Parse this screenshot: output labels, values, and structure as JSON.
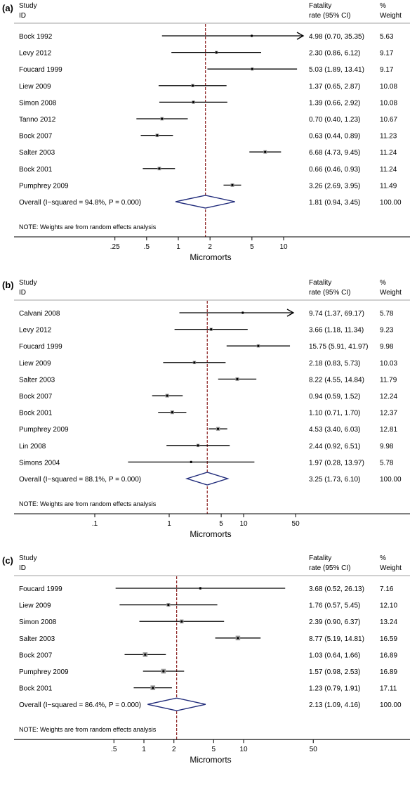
{
  "panels": [
    {
      "tag": "(a)",
      "header": {
        "study_1": "Study",
        "study_2": "ID",
        "rate_1": "Fatality",
        "rate_2": "rate (95% CI)",
        "weight_1": "%",
        "weight_2": "Weight"
      },
      "note": "NOTE: Weights are from random effects analysis",
      "xlabel": "Micromorts",
      "rows": [
        {
          "study": "Bock 1992",
          "ci_text": "4.98 (0.70, 35.35)",
          "weight": "5.63"
        },
        {
          "study": "Levy 2012",
          "ci_text": "2.30 (0.86, 6.12)",
          "weight": "9.17"
        },
        {
          "study": "Foucard 1999",
          "ci_text": "5.03 (1.89, 13.41)",
          "weight": "9.17"
        },
        {
          "study": "Liew 2009",
          "ci_text": "1.37 (0.65, 2.87)",
          "weight": "10.08"
        },
        {
          "study": "Simon 2008",
          "ci_text": "1.39 (0.66, 2.92)",
          "weight": "10.08"
        },
        {
          "study": "Tanno 2012",
          "ci_text": "0.70 (0.40, 1.23)",
          "weight": "10.67"
        },
        {
          "study": "Bock 2007",
          "ci_text": "0.63 (0.44, 0.89)",
          "weight": "11.23"
        },
        {
          "study": "Salter 2003",
          "ci_text": "6.68 (4.73, 9.45)",
          "weight": "11.24"
        },
        {
          "study": "Bock 2001",
          "ci_text": "0.66 (0.46, 0.93)",
          "weight": "11.24"
        },
        {
          "study": "Pumphrey 2009",
          "ci_text": "3.26 (2.69, 3.95)",
          "weight": "11.49"
        }
      ],
      "overall": {
        "label": "Overall (I−squared = 94.8%, P = 0.000)",
        "ci_text": "1.81 (0.94, 3.45)",
        "weight": "100.00"
      }
    },
    {
      "tag": "(b)",
      "header": {
        "study_1": "Study",
        "study_2": "ID",
        "rate_1": "Fatality",
        "rate_2": "rate (95% CI)",
        "weight_1": "%",
        "weight_2": "Weight"
      },
      "note": "NOTE: Weights are from random effects analysis",
      "xlabel": "Micromorts",
      "rows": [
        {
          "study": "Calvani 2008",
          "ci_text": "9.74 (1.37, 69.17)",
          "weight": "5.78"
        },
        {
          "study": "Levy 2012",
          "ci_text": "3.66 (1.18, 11.34)",
          "weight": "9.23"
        },
        {
          "study": "Foucard 1999",
          "ci_text": "15.75 (5.91, 41.97)",
          "weight": "9.98"
        },
        {
          "study": "Liew 2009",
          "ci_text": "2.18 (0.83, 5.73)",
          "weight": "10.03"
        },
        {
          "study": "Salter 2003",
          "ci_text": "8.22 (4.55, 14.84)",
          "weight": "11.79"
        },
        {
          "study": "Bock 2007",
          "ci_text": "0.94 (0.59, 1.52)",
          "weight": "12.24"
        },
        {
          "study": "Bock 2001",
          "ci_text": "1.10 (0.71, 1.70)",
          "weight": "12.37"
        },
        {
          "study": "Pumphrey 2009",
          "ci_text": "4.53 (3.40, 6.03)",
          "weight": "12.81"
        },
        {
          "study": "Lin 2008",
          "ci_text": "2.44 (0.92, 6.51)",
          "weight": "9.98"
        },
        {
          "study": "Simons 2004",
          "ci_text": "1.97 (0.28, 13.97)",
          "weight": "5.78"
        }
      ],
      "overall": {
        "label": "Overall (I−squared = 88.1%, P = 0.000)",
        "ci_text": "3.25 (1.73, 6.10)",
        "weight": "100.00"
      }
    },
    {
      "tag": "(c)",
      "header": {
        "study_1": "Study",
        "study_2": "ID",
        "rate_1": "Fatality",
        "rate_2": "rate (95% CI)",
        "weight_1": "%",
        "weight_2": "Weight"
      },
      "note": "NOTE: Weights are from random effects analysis",
      "xlabel": "Micromorts",
      "rows": [
        {
          "study": "Foucard 1999",
          "ci_text": "3.68 (0.52, 26.13)",
          "weight": "7.16"
        },
        {
          "study": "Liew 2009",
          "ci_text": "1.76 (0.57, 5.45)",
          "weight": "12.10"
        },
        {
          "study": "Simon 2008",
          "ci_text": "2.39 (0.90, 6.37)",
          "weight": "13.24"
        },
        {
          "study": "Salter 2003",
          "ci_text": "8.77 (5.19, 14.81)",
          "weight": "16.59"
        },
        {
          "study": "Bock 2007",
          "ci_text": "1.03 (0.64, 1.66)",
          "weight": "16.89"
        },
        {
          "study": "Pumphrey 2009",
          "ci_text": "1.57 (0.98, 2.53)",
          "weight": "16.89"
        },
        {
          "study": "Bock 2001",
          "ci_text": "1.23 (0.79, 1.91)",
          "weight": "17.11"
        }
      ],
      "overall": {
        "label": "Overall (I−squared = 86.4%, P = 0.000)",
        "ci_text": "2.13 (1.09, 4.16)",
        "weight": "100.00"
      }
    }
  ],
  "chart_data": [
    {
      "type": "forest",
      "panel": "(a)",
      "xscale": "log",
      "xlabel": "Micromorts",
      "xticks": [
        0.25,
        0.5,
        1,
        2,
        5,
        10
      ],
      "xtick_labels": [
        ".25",
        ".5",
        "1",
        "2",
        "5",
        "10"
      ],
      "xlim": [
        0.15,
        10
      ],
      "studies": [
        "Bock 1992",
        "Levy 2012",
        "Foucard 1999",
        "Liew 2009",
        "Simon 2008",
        "Tanno 2012",
        "Bock 2007",
        "Salter 2003",
        "Bock 2001",
        "Pumphrey 2009"
      ],
      "estimate": [
        4.98,
        2.3,
        5.03,
        1.37,
        1.39,
        0.7,
        0.63,
        6.68,
        0.66,
        3.26
      ],
      "lower": [
        0.7,
        0.86,
        1.89,
        0.65,
        0.66,
        0.4,
        0.44,
        4.73,
        0.46,
        2.69
      ],
      "upper": [
        35.35,
        6.12,
        13.41,
        2.87,
        2.92,
        1.23,
        0.89,
        9.45,
        0.93,
        3.95
      ],
      "weight": [
        5.63,
        9.17,
        9.17,
        10.08,
        10.08,
        10.67,
        11.23,
        11.24,
        11.24,
        11.49
      ],
      "overall": {
        "estimate": 1.81,
        "lower": 0.94,
        "upper": 3.45,
        "i_squared": 94.8,
        "p": 0.0
      }
    },
    {
      "type": "forest",
      "panel": "(b)",
      "xscale": "log",
      "xlabel": "Micromorts",
      "xticks": [
        0.1,
        1,
        5,
        10,
        50
      ],
      "xtick_labels": [
        ".1",
        "1",
        "5",
        "10",
        "50"
      ],
      "xlim": [
        0.025,
        50
      ],
      "studies": [
        "Calvani 2008",
        "Levy 2012",
        "Foucard 1999",
        "Liew 2009",
        "Salter 2003",
        "Bock 2007",
        "Bock 2001",
        "Pumphrey 2009",
        "Lin 2008",
        "Simons 2004"
      ],
      "estimate": [
        9.74,
        3.66,
        15.75,
        2.18,
        8.22,
        0.94,
        1.1,
        4.53,
        2.44,
        1.97
      ],
      "lower": [
        1.37,
        1.18,
        5.91,
        0.83,
        4.55,
        0.59,
        0.71,
        3.4,
        0.92,
        0.28
      ],
      "upper": [
        69.17,
        11.34,
        41.97,
        5.73,
        14.84,
        1.52,
        1.7,
        6.03,
        6.51,
        13.97
      ],
      "weight": [
        5.78,
        9.23,
        9.98,
        10.03,
        11.79,
        12.24,
        12.37,
        12.81,
        9.98,
        5.78
      ],
      "overall": {
        "estimate": 3.25,
        "lower": 1.73,
        "upper": 6.1,
        "i_squared": 88.1,
        "p": 0.0
      }
    },
    {
      "type": "forest",
      "panel": "(c)",
      "xscale": "log",
      "xlabel": "Micromorts",
      "xticks": [
        0.5,
        1,
        2,
        5,
        10,
        50
      ],
      "xtick_labels": [
        ".5",
        "1",
        "2",
        "5",
        "10",
        "50"
      ],
      "xlim": [
        0.25,
        50
      ],
      "studies": [
        "Foucard 1999",
        "Liew 2009",
        "Simon 2008",
        "Salter 2003",
        "Bock 2007",
        "Pumphrey 2009",
        "Bock 2001"
      ],
      "estimate": [
        3.68,
        1.76,
        2.39,
        8.77,
        1.03,
        1.57,
        1.23
      ],
      "lower": [
        0.52,
        0.57,
        0.9,
        5.19,
        0.64,
        0.98,
        0.79
      ],
      "upper": [
        26.13,
        5.45,
        6.37,
        14.81,
        1.66,
        2.53,
        1.91
      ],
      "weight": [
        7.16,
        12.1,
        13.24,
        16.59,
        16.89,
        16.89,
        17.11
      ],
      "overall": {
        "estimate": 2.13,
        "lower": 1.09,
        "upper": 4.16,
        "i_squared": 86.4,
        "p": 0.0
      }
    }
  ],
  "colors": {
    "text": "#000000",
    "line": "#000000",
    "reference_line": "#8b2020",
    "diamond": "#1f2a7a",
    "marker_fill": "#9a9a9a",
    "rule": "#a0a0a0"
  }
}
